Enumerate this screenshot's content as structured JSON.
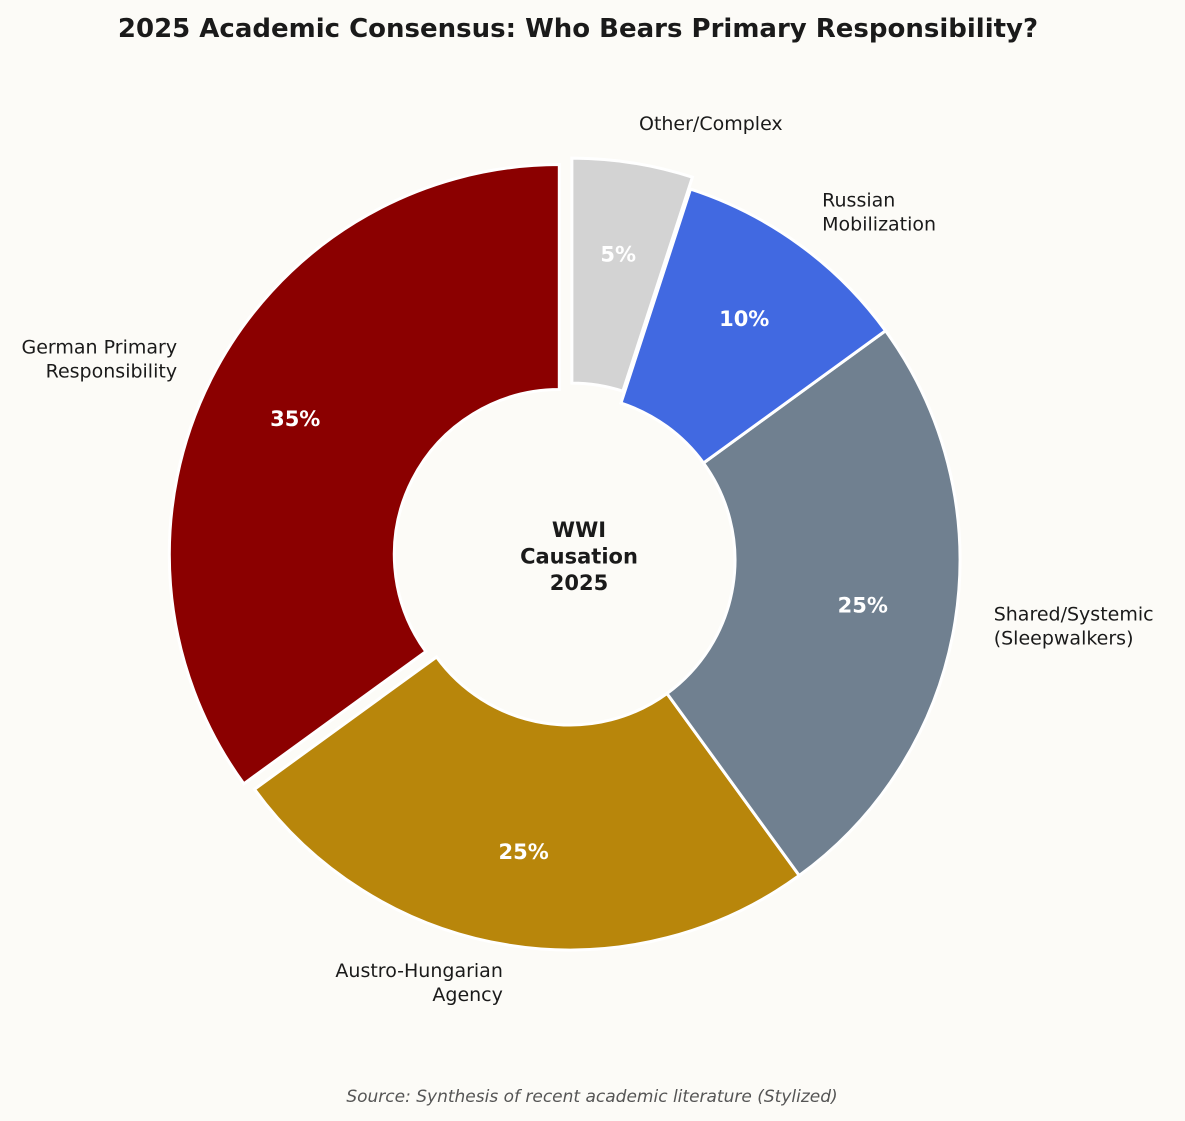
{
  "chart_data": {
    "type": "pie",
    "donut": true,
    "title": "2025 Academic Consensus: Who Bears Primary Responsibility?",
    "center_label": "WWI\nCausation\n2025",
    "source": "Source: Synthesis of recent academic literature (Stylized)",
    "start_angle_deg": 90,
    "direction": "counterclockwise",
    "slices": [
      {
        "label": "German Primary\nResponsibility",
        "value": 35,
        "pct_label": "35%",
        "color": "#8B0000",
        "exploded": true
      },
      {
        "label": "Austro-Hungarian\nAgency",
        "value": 25,
        "pct_label": "25%",
        "color": "#B8860B",
        "exploded": false
      },
      {
        "label": "Shared/Systemic\n(Sleepwalkers)",
        "value": 25,
        "pct_label": "25%",
        "color": "#708090",
        "exploded": false
      },
      {
        "label": "Russian\nMobilization",
        "value": 10,
        "pct_label": "10%",
        "color": "#4169E1",
        "exploded": false
      },
      {
        "label": "Other/Complex",
        "value": 5,
        "pct_label": "5%",
        "color": "#D3D3D3",
        "exploded": true
      }
    ]
  }
}
